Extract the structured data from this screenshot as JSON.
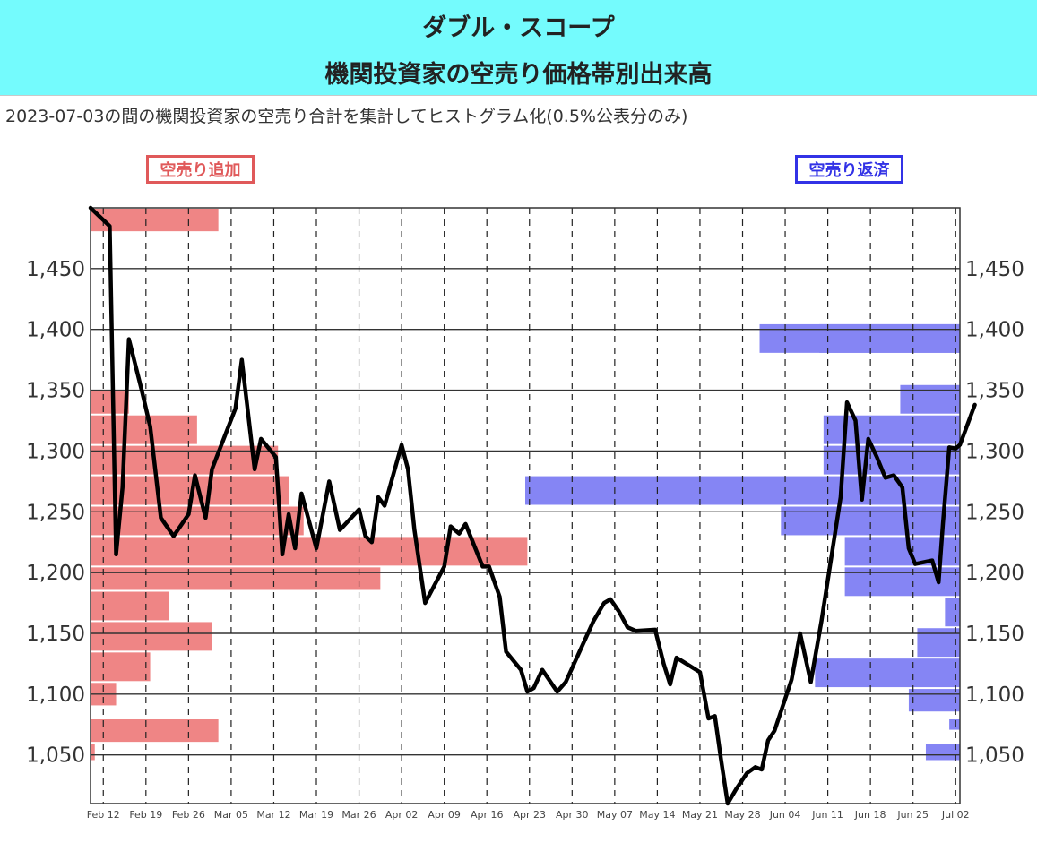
{
  "header": {
    "title": "ダブル・スコープ",
    "subtitle": "機関投資家の空売り価格帯別出来高"
  },
  "description": "2023-07-03の間の機関投資家の空売り合計を集計してヒストグラム化(0.5%公表分のみ)",
  "legend": {
    "add_label": "空売り追加",
    "return_label": "空売り返済"
  },
  "colors": {
    "header_bg": "#74fbfd",
    "add_bar": "#ef8585",
    "return_bar": "#8585f4",
    "price_line": "#000000",
    "add_text": "#e0595a",
    "return_text": "#3232e6"
  },
  "chart_data": {
    "type": "line",
    "ylim": [
      1010,
      1500
    ],
    "yticks": [
      1050,
      1100,
      1150,
      1200,
      1250,
      1300,
      1350,
      1400,
      1450
    ],
    "ytick_labels": [
      "1,050",
      "1,100",
      "1,150",
      "1,200",
      "1,250",
      "1,300",
      "1,350",
      "1,400",
      "1,450"
    ],
    "x_dates": [
      "Feb 12",
      "Feb 19",
      "Feb 26",
      "Mar 05",
      "Mar 12",
      "Mar 19",
      "Mar 26",
      "Apr 02",
      "Apr 09",
      "Apr 16",
      "Apr 23",
      "Apr 30",
      "May 07",
      "May 14",
      "May 21",
      "May 28",
      "Jun 04",
      "Jun 11",
      "Jun 18",
      "Jun 25",
      "Jul 02"
    ],
    "x_weeks_range": [
      -0.3,
      20.1
    ],
    "grid": true,
    "series": [
      {
        "type": "line",
        "points": [
          [
            -0.3,
            1500
          ],
          [
            0.15,
            1485
          ],
          [
            0.3,
            1215
          ],
          [
            0.45,
            1270
          ],
          [
            0.6,
            1392
          ],
          [
            0.9,
            1350
          ],
          [
            1.1,
            1320
          ],
          [
            1.35,
            1245
          ],
          [
            1.65,
            1230
          ],
          [
            2.0,
            1248
          ],
          [
            2.15,
            1280
          ],
          [
            2.4,
            1245
          ],
          [
            2.55,
            1285
          ],
          [
            3.1,
            1335
          ],
          [
            3.25,
            1375
          ],
          [
            3.55,
            1285
          ],
          [
            3.7,
            1310
          ],
          [
            4.05,
            1295
          ],
          [
            4.2,
            1215
          ],
          [
            4.35,
            1248
          ],
          [
            4.5,
            1220
          ],
          [
            4.65,
            1265
          ],
          [
            5.0,
            1220
          ],
          [
            5.3,
            1275
          ],
          [
            5.55,
            1235
          ],
          [
            6.0,
            1252
          ],
          [
            6.15,
            1230
          ],
          [
            6.3,
            1225
          ],
          [
            6.45,
            1262
          ],
          [
            6.6,
            1255
          ],
          [
            7.0,
            1305
          ],
          [
            7.15,
            1285
          ],
          [
            7.3,
            1235
          ],
          [
            7.55,
            1175
          ],
          [
            8.0,
            1205
          ],
          [
            8.15,
            1238
          ],
          [
            8.35,
            1232
          ],
          [
            8.5,
            1240
          ],
          [
            8.9,
            1205
          ],
          [
            9.05,
            1205
          ],
          [
            9.3,
            1180
          ],
          [
            9.45,
            1135
          ],
          [
            9.8,
            1120
          ],
          [
            9.95,
            1102
          ],
          [
            10.1,
            1105
          ],
          [
            10.3,
            1120
          ],
          [
            10.65,
            1102
          ],
          [
            10.85,
            1110
          ],
          [
            11.5,
            1160
          ],
          [
            11.75,
            1175
          ],
          [
            11.9,
            1178
          ],
          [
            12.1,
            1168
          ],
          [
            12.3,
            1155
          ],
          [
            12.5,
            1152
          ],
          [
            12.95,
            1153
          ],
          [
            13.15,
            1125
          ],
          [
            13.3,
            1108
          ],
          [
            13.45,
            1130
          ],
          [
            14.0,
            1118
          ],
          [
            14.2,
            1080
          ],
          [
            14.35,
            1082
          ],
          [
            14.5,
            1045
          ],
          [
            14.65,
            1010
          ],
          [
            14.85,
            1022
          ],
          [
            15.1,
            1035
          ],
          [
            15.3,
            1040
          ],
          [
            15.45,
            1038
          ],
          [
            15.6,
            1062
          ],
          [
            15.75,
            1070
          ],
          [
            16.15,
            1112
          ],
          [
            16.35,
            1150
          ],
          [
            16.6,
            1110
          ],
          [
            16.85,
            1160
          ],
          [
            17.3,
            1262
          ],
          [
            17.45,
            1340
          ],
          [
            17.65,
            1325
          ],
          [
            17.8,
            1260
          ],
          [
            17.95,
            1310
          ],
          [
            18.15,
            1295
          ],
          [
            18.35,
            1278
          ],
          [
            18.55,
            1280
          ],
          [
            18.75,
            1270
          ],
          [
            18.9,
            1220
          ],
          [
            19.05,
            1207
          ],
          [
            19.45,
            1210
          ],
          [
            19.6,
            1192
          ],
          [
            19.7,
            1240
          ],
          [
            19.85,
            1303
          ],
          [
            20.0,
            1302
          ],
          [
            20.1,
            1305
          ],
          [
            20.45,
            1338
          ]
        ]
      },
      {
        "name": "空売り追加",
        "type": "horizontal_bar_left",
        "bins_low": [
          1045,
          1060,
          1090,
          1110,
          1135,
          1160,
          1185,
          1205,
          1230,
          1255,
          1280,
          1305,
          1330,
          1480
        ],
        "bins_high": [
          1060,
          1080,
          1110,
          1135,
          1160,
          1185,
          1205,
          1230,
          1255,
          1280,
          1305,
          1330,
          1350,
          1500
        ],
        "extent_weeks": [
          0.1,
          3.0,
          0.6,
          1.4,
          2.85,
          1.85,
          6.8,
          10.25,
          5.0,
          4.65,
          4.4,
          2.5,
          0.9,
          3.0
        ]
      },
      {
        "name": "空売り返済",
        "type": "horizontal_bar_right",
        "bins_low": [
          1045,
          1070,
          1085,
          1105,
          1130,
          1155,
          1180,
          1205,
          1230,
          1255,
          1280,
          1305,
          1330,
          1380,
          1380
        ],
        "bins_high": [
          1060,
          1080,
          1105,
          1130,
          1155,
          1180,
          1205,
          1230,
          1255,
          1280,
          1305,
          1330,
          1355,
          1405,
          1405
        ],
        "extent_weeks": [
          0.8,
          0.25,
          1.2,
          3.4,
          1.0,
          0.35,
          2.7,
          2.7,
          4.2,
          10.2,
          3.2,
          3.2,
          1.4,
          4.7,
          3.3
        ]
      }
    ]
  }
}
